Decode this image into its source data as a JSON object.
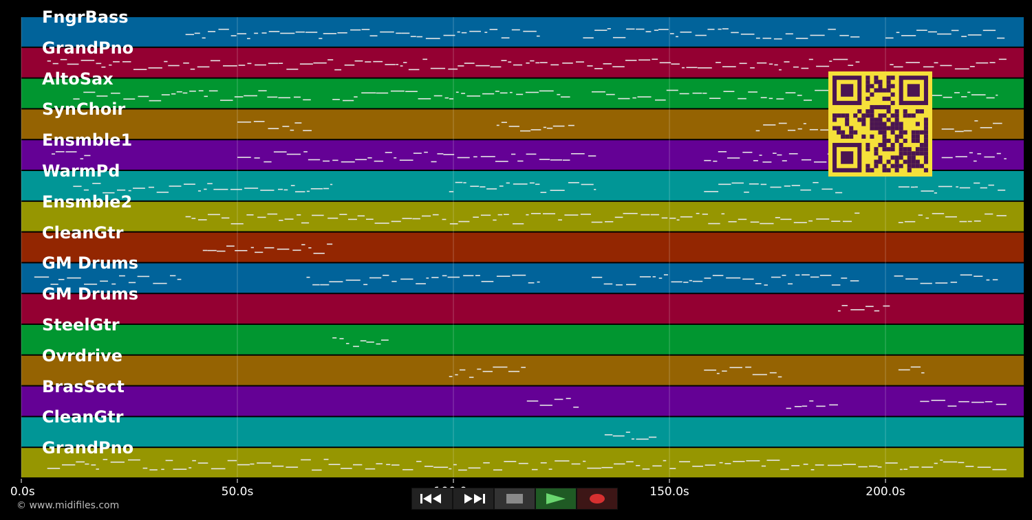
{
  "player": {
    "copyright": "© www.midifiles.com",
    "colors": {
      "background": "#000000",
      "grid": "#ffffff",
      "notes": "#e6e6e6",
      "qr_bg": "#f5e03a",
      "qr_fg": "#4a1552"
    }
  },
  "timeline": {
    "min": 0,
    "max": 232,
    "ticks": [
      {
        "t": 0,
        "label": "0.0s"
      },
      {
        "t": 50,
        "label": "50.0s"
      },
      {
        "t": 100,
        "label": "100.0s"
      },
      {
        "t": 150,
        "label": "150.0s"
      },
      {
        "t": 200,
        "label": "200.0s"
      }
    ]
  },
  "tracks": [
    {
      "name": "FngrBass",
      "color": "#01639a",
      "segments": [
        [
          38,
          88
        ],
        [
          88,
          120
        ],
        [
          130,
          194
        ],
        [
          200,
          228
        ]
      ]
    },
    {
      "name": "GrandPno",
      "color": "#940032",
      "segments": [
        [
          6,
          194
        ],
        [
          201,
          228
        ]
      ]
    },
    {
      "name": "AltoSax",
      "color": "#019630",
      "segments": [
        [
          12,
          67
        ],
        [
          72,
          127
        ],
        [
          132,
          190
        ],
        [
          200,
          226
        ]
      ]
    },
    {
      "name": "SynChoir",
      "color": "#956302",
      "segments": [
        [
          50,
          68
        ],
        [
          110,
          128
        ],
        [
          170,
          188
        ],
        [
          213,
          227
        ]
      ]
    },
    {
      "name": "Ensmble1",
      "color": "#640195",
      "segments": [
        [
          7,
          16
        ],
        [
          50,
          133
        ],
        [
          158,
          190
        ],
        [
          213,
          228
        ]
      ]
    },
    {
      "name": "WarmPd",
      "color": "#019696",
      "segments": [
        [
          12,
          72
        ],
        [
          99,
          133
        ],
        [
          158,
          190
        ],
        [
          203,
          228
        ]
      ]
    },
    {
      "name": "Ensmble2",
      "color": "#969601",
      "segments": [
        [
          38,
          194
        ],
        [
          203,
          228
        ]
      ]
    },
    {
      "name": "CleanGtr",
      "color": "#932601",
      "segments": [
        [
          42,
          72
        ]
      ]
    },
    {
      "name": "GM Drums",
      "color": "#01639a",
      "segments": [
        [
          3,
          37
        ],
        [
          66,
          120
        ],
        [
          132,
          194
        ],
        [
          202,
          226
        ]
      ]
    },
    {
      "name": "GM Drums",
      "color": "#940032",
      "segments": [
        [
          189,
          201
        ]
      ]
    },
    {
      "name": "SteelGtr",
      "color": "#019630",
      "segments": [
        [
          72,
          85
        ]
      ]
    },
    {
      "name": "Ovrdrive",
      "color": "#956302",
      "segments": [
        [
          99,
          117
        ],
        [
          158,
          176
        ],
        [
          203,
          209
        ]
      ]
    },
    {
      "name": "BrasSect",
      "color": "#640195",
      "segments": [
        [
          117,
          129
        ],
        [
          177,
          189
        ],
        [
          208,
          228
        ]
      ]
    },
    {
      "name": "CleanGtr",
      "color": "#019696",
      "segments": [
        [
          135,
          147
        ]
      ]
    },
    {
      "name": "GrandPno",
      "color": "#969601",
      "segments": [
        [
          6,
          228
        ]
      ]
    }
  ],
  "transport": [
    {
      "name": "rewind-button",
      "icon": "rewind-icon",
      "color": "#2a2a2a"
    },
    {
      "name": "fast-forward-button",
      "icon": "fast-forward-icon",
      "color": "#2a2a2a"
    },
    {
      "name": "stop-button",
      "icon": "stop-icon",
      "color": "#333333"
    },
    {
      "name": "play-button",
      "icon": "play-icon",
      "color": "#246b2a"
    },
    {
      "name": "record-button",
      "icon": "record-icon",
      "color": "#4a1a1a"
    }
  ]
}
